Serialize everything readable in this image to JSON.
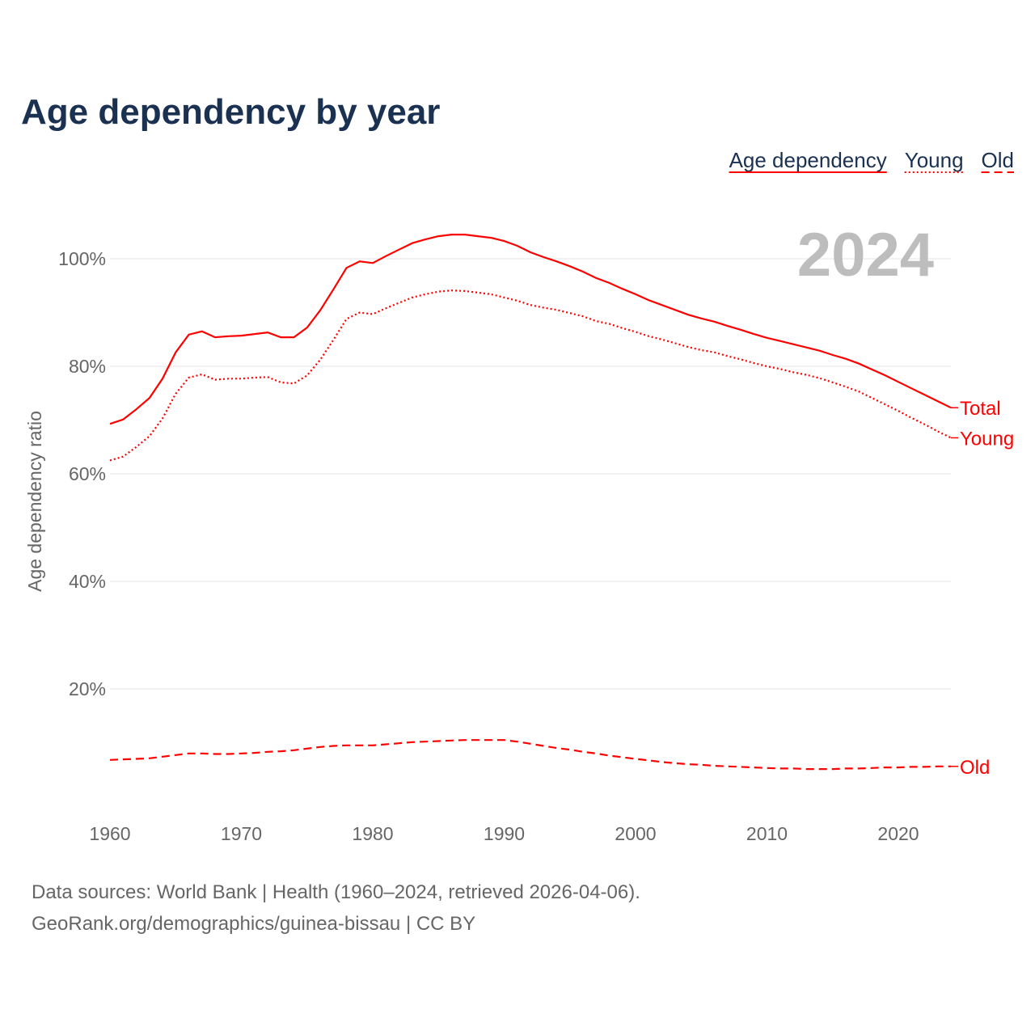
{
  "chart_data": {
    "type": "line",
    "title": "Age dependency by year",
    "xlabel": "",
    "ylabel": "Age dependency ratio",
    "ylim": [
      0,
      110
    ],
    "xlim": [
      1960,
      2024
    ],
    "y_ticks": [
      "20%",
      "40%",
      "60%",
      "80%",
      "100%"
    ],
    "y_tick_values": [
      20,
      40,
      60,
      80,
      100
    ],
    "x_ticks": [
      "1960",
      "1970",
      "1980",
      "1990",
      "2000",
      "2010",
      "2020"
    ],
    "x_tick_values": [
      1960,
      1970,
      1980,
      1990,
      2000,
      2010,
      2020
    ],
    "grid": true,
    "year_watermark": "2024",
    "legend": [
      "Age dependency",
      "Young",
      "Old"
    ],
    "legend_placement": "top-right",
    "color": "#ff0000",
    "series": [
      {
        "name": "Total",
        "legend": "Age dependency",
        "end_label": "Total",
        "style": "solid",
        "values": [
          69.3,
          70.1,
          72.0,
          74.1,
          77.7,
          82.6,
          85.9,
          86.5,
          85.4,
          85.6,
          85.7,
          86.0,
          86.3,
          85.4,
          85.4,
          87.2,
          90.4,
          94.3,
          98.3,
          99.5,
          99.2,
          100.5,
          101.7,
          102.9,
          103.6,
          104.2,
          104.5,
          104.5,
          104.2,
          103.9,
          103.3,
          102.4,
          101.2,
          100.3,
          99.5,
          98.6,
          97.6,
          96.4,
          95.5,
          94.4,
          93.4,
          92.3,
          91.4,
          90.5,
          89.6,
          88.9,
          88.3,
          87.5,
          86.8,
          86.0,
          85.3,
          84.7,
          84.1,
          83.5,
          82.9,
          82.1,
          81.4,
          80.5,
          79.4,
          78.3,
          77.1,
          75.9,
          74.7,
          73.5,
          72.3
        ]
      },
      {
        "name": "Young",
        "legend": "Young",
        "end_label": "Young",
        "style": "dotted",
        "values": [
          62.5,
          63.2,
          65.0,
          67.0,
          70.3,
          74.9,
          77.9,
          78.5,
          77.5,
          77.7,
          77.7,
          77.9,
          78.0,
          77.0,
          76.8,
          78.3,
          81.2,
          84.9,
          88.8,
          90.0,
          89.7,
          90.8,
          91.8,
          92.8,
          93.4,
          93.9,
          94.1,
          94.0,
          93.7,
          93.4,
          92.8,
          92.2,
          91.4,
          90.9,
          90.5,
          89.9,
          89.3,
          88.4,
          87.9,
          87.1,
          86.4,
          85.6,
          85.0,
          84.3,
          83.6,
          83.0,
          82.6,
          81.9,
          81.3,
          80.6,
          80.0,
          79.5,
          78.9,
          78.4,
          77.8,
          77.0,
          76.2,
          75.3,
          74.1,
          72.9,
          71.7,
          70.4,
          69.2,
          67.9,
          66.7
        ]
      },
      {
        "name": "Old",
        "legend": "Old",
        "end_label": "Old",
        "style": "dashed",
        "values": [
          6.8,
          6.9,
          7.0,
          7.1,
          7.4,
          7.7,
          8.0,
          8.0,
          7.9,
          7.9,
          8.0,
          8.1,
          8.3,
          8.4,
          8.6,
          8.9,
          9.2,
          9.4,
          9.5,
          9.5,
          9.5,
          9.7,
          9.9,
          10.1,
          10.2,
          10.3,
          10.4,
          10.5,
          10.5,
          10.5,
          10.5,
          10.2,
          9.8,
          9.4,
          9.0,
          8.7,
          8.3,
          8.0,
          7.6,
          7.3,
          7.0,
          6.7,
          6.4,
          6.2,
          6.0,
          5.9,
          5.7,
          5.6,
          5.5,
          5.4,
          5.3,
          5.2,
          5.2,
          5.1,
          5.1,
          5.1,
          5.2,
          5.2,
          5.3,
          5.4,
          5.4,
          5.5,
          5.5,
          5.6,
          5.6
        ]
      }
    ]
  },
  "footer": {
    "source_line": "Data sources: World Bank | Health (1960–2024, retrieved 2026-04-06).",
    "credit_line": "GeoRank.org/demographics/guinea-bissau | CC BY"
  }
}
